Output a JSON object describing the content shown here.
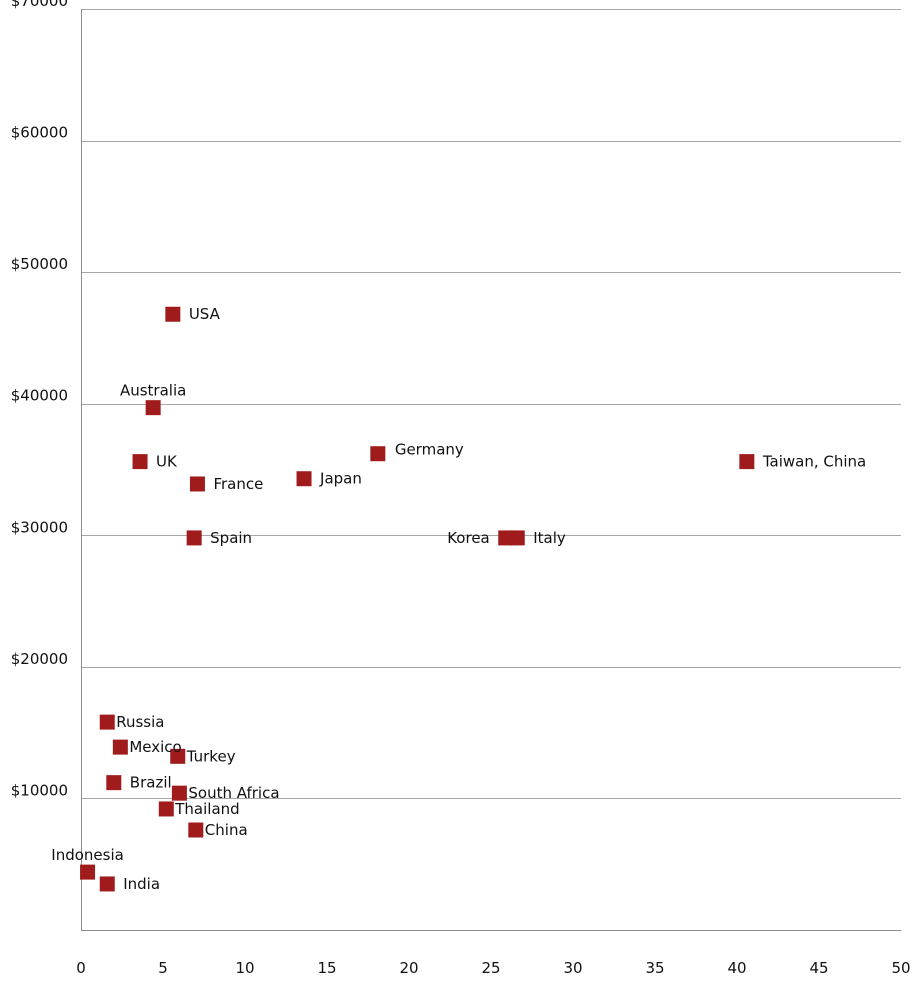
{
  "chart_data": {
    "type": "scatter",
    "title": "",
    "xlabel": "",
    "ylabel": "",
    "xlim": [
      0,
      50
    ],
    "ylim": [
      0,
      70000
    ],
    "x_ticks": [
      0,
      5,
      10,
      15,
      20,
      25,
      30,
      35,
      40,
      45,
      50
    ],
    "y_ticks": [
      10000,
      20000,
      30000,
      40000,
      50000,
      60000,
      70000
    ],
    "x_tick_labels": [
      "0",
      "5",
      "10",
      "15",
      "20",
      "25",
      "30",
      "35",
      "40",
      "45",
      "50"
    ],
    "y_tick_labels": [
      "$10000",
      "$20000",
      "$30000",
      "$40000",
      "$50000",
      "$60000",
      "$70000"
    ],
    "grid": "horizontal",
    "marker_color": "#a01c1c",
    "points": [
      {
        "label": "USA",
        "x": 5.6,
        "y": 46800,
        "label_pos": "right"
      },
      {
        "label": "Australia",
        "x": 4.4,
        "y": 39700,
        "label_pos": "above"
      },
      {
        "label": "UK",
        "x": 3.6,
        "y": 35600,
        "label_pos": "right"
      },
      {
        "label": "France",
        "x": 7.1,
        "y": 33900,
        "label_pos": "right"
      },
      {
        "label": "Spain",
        "x": 6.9,
        "y": 29800,
        "label_pos": "right"
      },
      {
        "label": "Japan",
        "x": 13.6,
        "y": 34300,
        "label_pos": "right"
      },
      {
        "label": "Germany",
        "x": 18.1,
        "y": 36200,
        "label_pos": "right-up"
      },
      {
        "label": "Korea",
        "x": 25.9,
        "y": 29800,
        "label_pos": "left"
      },
      {
        "label": "Italy",
        "x": 26.6,
        "y": 29800,
        "label_pos": "right"
      },
      {
        "label": "Taiwan, China",
        "x": 40.6,
        "y": 35600,
        "label_pos": "right"
      },
      {
        "label": "Russia",
        "x": 1.6,
        "y": 15800,
        "label_pos": "right-tight"
      },
      {
        "label": "Mexico",
        "x": 2.4,
        "y": 13900,
        "label_pos": "right-tight"
      },
      {
        "label": "Turkey",
        "x": 5.9,
        "y": 13200,
        "label_pos": "right-tight"
      },
      {
        "label": "Brazil",
        "x": 2.0,
        "y": 11200,
        "label_pos": "right"
      },
      {
        "label": "South Africa",
        "x": 6.0,
        "y": 10400,
        "label_pos": "right-tight"
      },
      {
        "label": "Thailand",
        "x": 5.2,
        "y": 9200,
        "label_pos": "right-tight"
      },
      {
        "label": "China",
        "x": 7.0,
        "y": 7600,
        "label_pos": "right-tight"
      },
      {
        "label": "Indonesia",
        "x": 0.4,
        "y": 4400,
        "label_pos": "above"
      },
      {
        "label": "India",
        "x": 1.6,
        "y": 3500,
        "label_pos": "right"
      }
    ]
  }
}
